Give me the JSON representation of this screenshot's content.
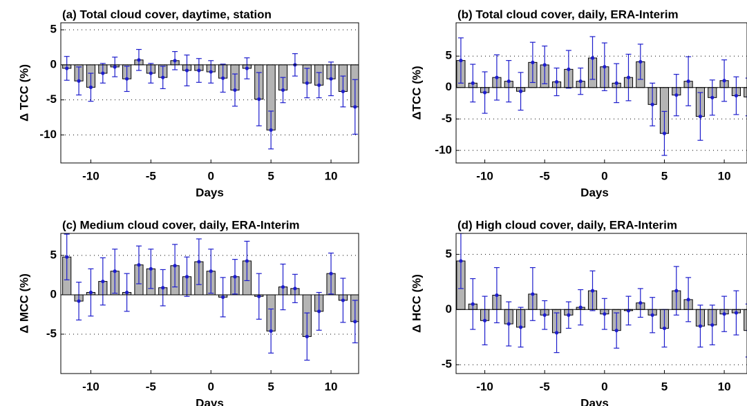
{
  "chart_data": [
    {
      "type": "bar",
      "title": "(a) Total cloud cover, daytime, station",
      "x_label": "Days",
      "y_label": "Δ TCC (%)",
      "x": [
        -12,
        -11,
        -10,
        -9,
        -8,
        -7,
        -6,
        -5,
        -4,
        -3,
        -2,
        -1,
        0,
        1,
        2,
        3,
        4,
        5,
        6,
        7,
        8,
        9,
        10,
        11,
        12
      ],
      "values": [
        -0.5,
        -2.3,
        -3.2,
        -1.2,
        -0.3,
        -2.0,
        0.7,
        -1.2,
        -1.8,
        0.6,
        -0.8,
        -0.8,
        -1.0,
        -1.9,
        -3.6,
        -0.5,
        -4.9,
        -9.3,
        -3.6,
        0,
        -2.6,
        -2.9,
        -2.0,
        -3.8,
        -6.0
      ],
      "errors": [
        1.7,
        2,
        2,
        1.4,
        1.4,
        1.8,
        1.5,
        1.4,
        1.6,
        1.3,
        2.2,
        1.7,
        1.6,
        2.0,
        2.3,
        1.5,
        3.8,
        2.7,
        1.8,
        1.6,
        2.1,
        1.8,
        2.4,
        2.2,
        3.9
      ],
      "color": "#b4b4b4",
      "error_color": "#1c1ccc",
      "xlim": [
        -12.5,
        12.3
      ],
      "xticks": [
        -10,
        -5,
        0,
        5,
        10
      ],
      "ylim": [
        -14,
        6
      ],
      "yticks": [
        -10,
        -5,
        0,
        5
      ],
      "grid": true
    },
    {
      "type": "bar",
      "title": "(b) Total cloud cover, daily, ERA-Interim",
      "x_label": "Days",
      "y_label": "ΔTCC (%)",
      "x": [
        -12,
        -11,
        -10,
        -9,
        -8,
        -7,
        -6,
        -5,
        -4,
        -3,
        -2,
        -1,
        0,
        1,
        2,
        3,
        4,
        5,
        6,
        7,
        8,
        9,
        10,
        11,
        12
      ],
      "values": [
        4.3,
        0.7,
        -0.8,
        1.6,
        1.0,
        -0.6,
        4.0,
        3.6,
        0.9,
        2.9,
        1.0,
        4.7,
        3.3,
        0.7,
        1.6,
        4.1,
        -2.7,
        -7.3,
        -1.2,
        1.0,
        -4.6,
        -1.6,
        1.1,
        -1.3,
        -1.5
      ],
      "errors": [
        3.6,
        3.0,
        3.3,
        3.6,
        3.3,
        3.0,
        3.2,
        3.0,
        2.2,
        3.0,
        2.1,
        3.4,
        3.8,
        3.1,
        3.7,
        2.8,
        3.4,
        3.5,
        3.3,
        3.9,
        3.8,
        2.8,
        3.3,
        3.0,
        3.0
      ],
      "color": "#b4b4b4",
      "error_color": "#1c1ccc",
      "xlim": [
        -12.4,
        11.9
      ],
      "xticks": [
        -10,
        -5,
        0,
        5,
        10
      ],
      "ylim": [
        -12,
        10.3
      ],
      "yticks": [
        -10,
        -5,
        0,
        5
      ],
      "grid": true
    },
    {
      "type": "bar",
      "title": "(c) Medium cloud cover, daily, ERA-Interim",
      "x_label": "Days",
      "y_label": "Δ MCC (%)",
      "x": [
        -12,
        -11,
        -10,
        -9,
        -8,
        -7,
        -6,
        -5,
        -4,
        -3,
        -2,
        -1,
        0,
        1,
        2,
        3,
        4,
        5,
        6,
        7,
        8,
        9,
        10,
        11,
        12
      ],
      "values": [
        4.8,
        -0.8,
        0.3,
        1.7,
        3.0,
        0.3,
        3.8,
        3.3,
        0.9,
        3.7,
        2.3,
        4.2,
        3.0,
        -0.3,
        2.3,
        4.3,
        -0.2,
        -4.6,
        1.0,
        0.8,
        -5.3,
        -2.1,
        2.7,
        -0.7,
        -3.4
      ],
      "errors": [
        2.9,
        2.4,
        3.0,
        3.0,
        2.8,
        2.4,
        2.4,
        2.5,
        2.3,
        2.7,
        2.5,
        2.9,
        2.8,
        2.5,
        2.2,
        2.5,
        2.9,
        2.8,
        2.9,
        1.8,
        3.0,
        2.4,
        2.6,
        2.8,
        2.7
      ],
      "color": "#b4b4b4",
      "error_color": "#1c1ccc",
      "xlim": [
        -12.5,
        12.3
      ],
      "xticks": [
        -10,
        -5,
        0,
        5,
        10
      ],
      "ylim": [
        -10,
        7.8
      ],
      "yticks": [
        -5,
        0,
        5
      ],
      "grid": true
    },
    {
      "type": "bar",
      "title": "(d) High cloud cover, daily, ERA-Interim",
      "x_label": "Days",
      "y_label": "Δ HCC (%)",
      "x": [
        -12,
        -11,
        -10,
        -9,
        -8,
        -7,
        -6,
        -5,
        -4,
        -3,
        -2,
        -1,
        0,
        1,
        2,
        3,
        4,
        5,
        6,
        7,
        8,
        9,
        10,
        11,
        12
      ],
      "values": [
        4.4,
        0.5,
        -1.0,
        1.3,
        -1.3,
        -1.6,
        1.4,
        -0.5,
        -2.1,
        -0.5,
        0.2,
        1.7,
        -0.4,
        -1.9,
        -0.1,
        0.6,
        -0.5,
        -1.7,
        1.7,
        0.9,
        -1.5,
        -1.4,
        -0.4,
        -0.3,
        -1.9
      ],
      "errors": [
        2.5,
        2.3,
        2.2,
        2.5,
        2.0,
        1.8,
        2.4,
        1.3,
        1.8,
        1.2,
        1.6,
        1.8,
        1.4,
        1.6,
        1.3,
        1.3,
        1.6,
        1.7,
        2.2,
        2.0,
        1.9,
        1.8,
        1.6,
        2.0,
        2.4
      ],
      "color": "#b4b4b4",
      "error_color": "#1c1ccc",
      "xlim": [
        -12.4,
        11.9
      ],
      "xticks": [
        -10,
        -5,
        0,
        5,
        10
      ],
      "ylim": [
        -5.8,
        6.9
      ],
      "yticks": [
        -5,
        0,
        5
      ],
      "grid": true
    }
  ]
}
